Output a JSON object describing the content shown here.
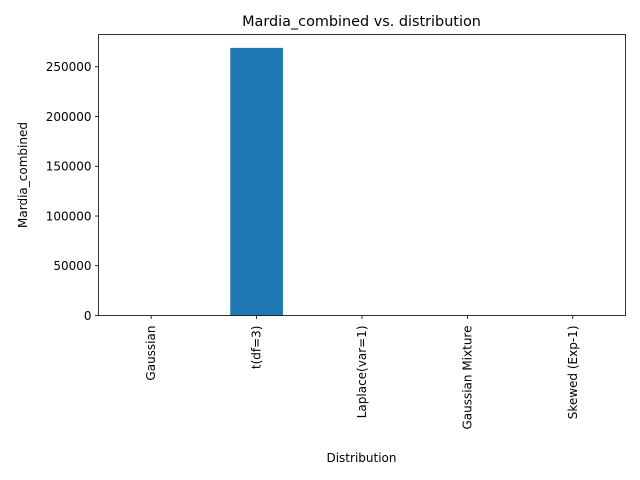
{
  "chart_data": {
    "type": "bar",
    "title": "Mardia_combined vs. distribution",
    "xlabel": "Distribution",
    "ylabel": "Mardia_combined",
    "categories": [
      "Gaussian",
      "t(df=3)",
      "Laplace(var=1)",
      "Gaussian Mixture",
      "Skewed (Exp-1)"
    ],
    "values": [
      35,
      269000,
      60,
      45,
      110
    ],
    "ylim": [
      0,
      282450
    ],
    "yticks": [
      0,
      50000,
      100000,
      150000,
      200000,
      250000
    ],
    "bar_color": "#1f77b4",
    "grid": false
  }
}
